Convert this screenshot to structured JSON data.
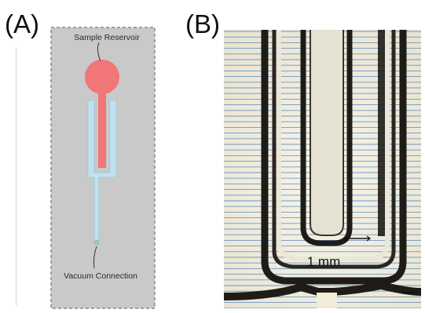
{
  "panels": {
    "a": {
      "label": "(A)",
      "reservoir_label": "Sample Reservoir",
      "vacuum_label": "Vacuum Connection",
      "colors": {
        "reservoir": "#f07677",
        "channel": "#bfe3ee",
        "chip": "#c9c9c9",
        "border": "#8a8a8a"
      }
    },
    "b": {
      "label": "(B)",
      "scale_label": "1 mm",
      "colors": {
        "background": "#f2efe3",
        "grid_lines": "#3f7fc0",
        "channel_wall": "#1f1c18"
      }
    }
  }
}
